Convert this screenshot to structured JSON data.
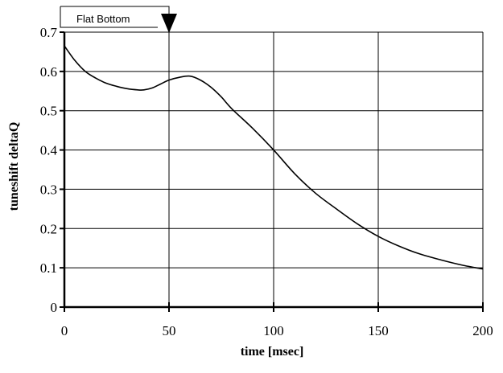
{
  "chart_data": {
    "type": "line",
    "title": "",
    "xlabel": "time [msec]",
    "ylabel": "tuneshift deltaQ",
    "xlim": [
      0,
      200
    ],
    "ylim": [
      0,
      0.7
    ],
    "x_ticks": [
      "0",
      "50",
      "100",
      "150",
      "200"
    ],
    "y_ticks": [
      "0",
      "0.1",
      "0.2",
      "0.3",
      "0.4",
      "0.5",
      "0.6",
      "0.7"
    ],
    "grid": true,
    "legend": "none",
    "series": [
      {
        "x": [
          0,
          5,
          10,
          15,
          20,
          25,
          30,
          35,
          38,
          42,
          46,
          50,
          55,
          60,
          65,
          70,
          75,
          80,
          90,
          100,
          110,
          120,
          130,
          140,
          150,
          160,
          170,
          180,
          190,
          200
        ],
        "y": [
          0.665,
          0.628,
          0.6,
          0.583,
          0.57,
          0.562,
          0.556,
          0.553,
          0.553,
          0.558,
          0.568,
          0.578,
          0.585,
          0.588,
          0.578,
          0.56,
          0.535,
          0.505,
          0.455,
          0.4,
          0.34,
          0.29,
          0.25,
          0.212,
          0.18,
          0.155,
          0.135,
          0.12,
          0.107,
          0.097
        ],
        "color": "#000000"
      }
    ],
    "annotations": [
      {
        "text": "Flat Bottom",
        "x": 50
      }
    ]
  }
}
